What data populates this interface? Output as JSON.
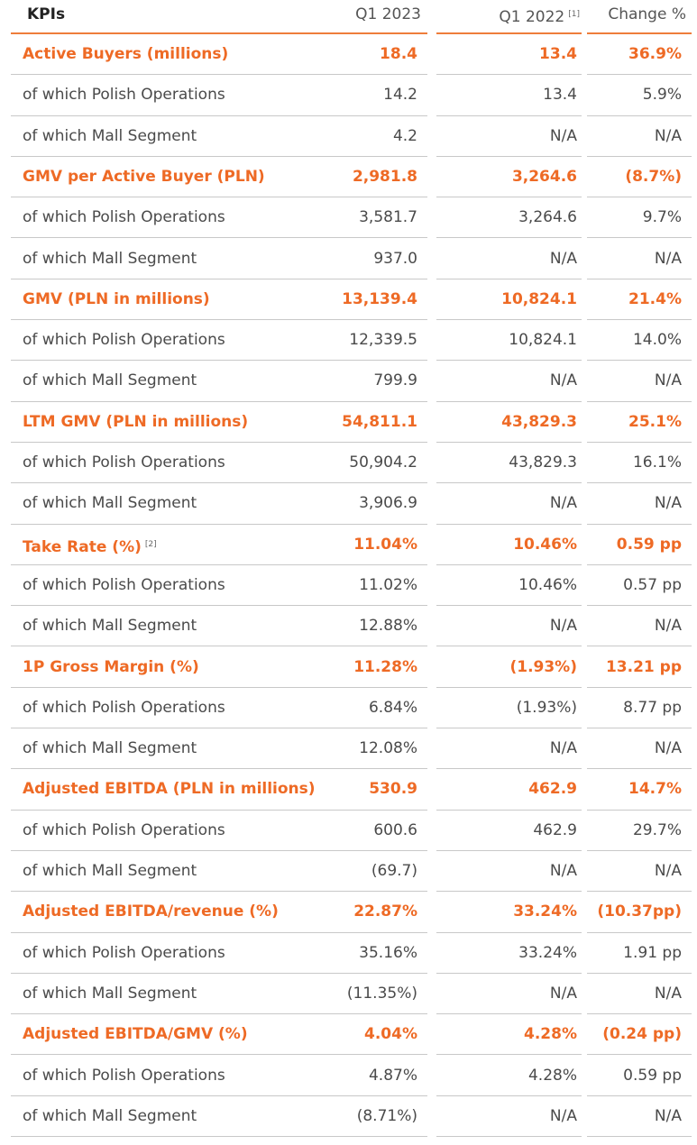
{
  "header": {
    "kpis": "KPIs",
    "q1_2023": "Q1 2023",
    "q1_2022": "Q1 2022",
    "q1_2022_note": "[1]",
    "change": "Change %"
  },
  "table": {
    "rows": [
      {
        "label": "Active Buyers (millions)",
        "q1_2023": "18.4",
        "q1_2022": "13.4",
        "change": "36.9%",
        "highlight": true
      },
      {
        "label": "of which Polish Operations",
        "q1_2023": "14.2",
        "q1_2022": "13.4",
        "change": "5.9%"
      },
      {
        "label": "of which Mall Segment",
        "q1_2023": "4.2",
        "q1_2022": "N/A",
        "change": "N/A"
      },
      {
        "label": "GMV per Active Buyer (PLN)",
        "q1_2023": "2,981.8",
        "q1_2022": "3,264.6",
        "change": "(8.7%)",
        "highlight": true
      },
      {
        "label": "of which Polish Operations",
        "q1_2023": "3,581.7",
        "q1_2022": "3,264.6",
        "change": "9.7%"
      },
      {
        "label": "of which Mall Segment",
        "q1_2023": "937.0",
        "q1_2022": "N/A",
        "change": "N/A"
      },
      {
        "label": "GMV (PLN in millions)",
        "q1_2023": "13,139.4",
        "q1_2022": "10,824.1",
        "change": "21.4%",
        "highlight": true
      },
      {
        "label": "of which Polish Operations",
        "q1_2023": "12,339.5",
        "q1_2022": "10,824.1",
        "change": "14.0%"
      },
      {
        "label": "of which Mall Segment",
        "q1_2023": "799.9",
        "q1_2022": "N/A",
        "change": "N/A"
      },
      {
        "label": "LTM GMV (PLN in millions)",
        "q1_2023": "54,811.1",
        "q1_2022": "43,829.3",
        "change": "25.1%",
        "highlight": true
      },
      {
        "label": "of which Polish Operations",
        "q1_2023": "50,904.2",
        "q1_2022": "43,829.3",
        "change": "16.1%"
      },
      {
        "label": "of which Mall Segment",
        "q1_2023": "3,906.9",
        "q1_2022": "N/A",
        "change": "N/A"
      },
      {
        "label": "Take Rate (%)",
        "note": "[2]",
        "q1_2023": "11.04%",
        "q1_2022": "10.46%",
        "change": "0.59 pp",
        "highlight": true
      },
      {
        "label": "of which Polish Operations",
        "q1_2023": "11.02%",
        "q1_2022": "10.46%",
        "change": "0.57 pp"
      },
      {
        "label": "of which Mall Segment",
        "q1_2023": "12.88%",
        "q1_2022": "N/A",
        "change": "N/A"
      },
      {
        "label": "1P Gross Margin (%)",
        "q1_2023": "11.28%",
        "q1_2022": "(1.93%)",
        "change": "13.21 pp",
        "highlight": true
      },
      {
        "label": "of which Polish Operations",
        "q1_2023": "6.84%",
        "q1_2022": "(1.93%)",
        "change": "8.77 pp"
      },
      {
        "label": "of which Mall Segment",
        "q1_2023": "12.08%",
        "q1_2022": "N/A",
        "change": "N/A"
      },
      {
        "label": "Adjusted EBITDA (PLN in millions)",
        "q1_2023": "530.9",
        "q1_2022": "462.9",
        "change": "14.7%",
        "highlight": true
      },
      {
        "label": "of which Polish Operations",
        "q1_2023": "600.6",
        "q1_2022": "462.9",
        "change": "29.7%"
      },
      {
        "label": "of which Mall Segment",
        "q1_2023": "(69.7)",
        "q1_2022": "N/A",
        "change": "N/A"
      },
      {
        "label": "Adjusted EBITDA/revenue (%)",
        "q1_2023": "22.87%",
        "q1_2022": "33.24%",
        "change": "(10.37pp)",
        "highlight": true
      },
      {
        "label": "of which Polish Operations",
        "q1_2023": "35.16%",
        "q1_2022": "33.24%",
        "change": "1.91 pp"
      },
      {
        "label": "of which Mall Segment",
        "q1_2023": "(11.35%)",
        "q1_2022": "N/A",
        "change": "N/A"
      },
      {
        "label": "Adjusted EBITDA/GMV (%)",
        "q1_2023": "4.04%",
        "q1_2022": "4.28%",
        "change": "(0.24 pp)",
        "highlight": true
      },
      {
        "label": "of which Polish Operations",
        "q1_2023": "4.87%",
        "q1_2022": "4.28%",
        "change": "0.59 pp"
      },
      {
        "label": "of which Mall Segment",
        "q1_2023": "(8.71%)",
        "q1_2022": "N/A",
        "change": "N/A"
      }
    ]
  }
}
